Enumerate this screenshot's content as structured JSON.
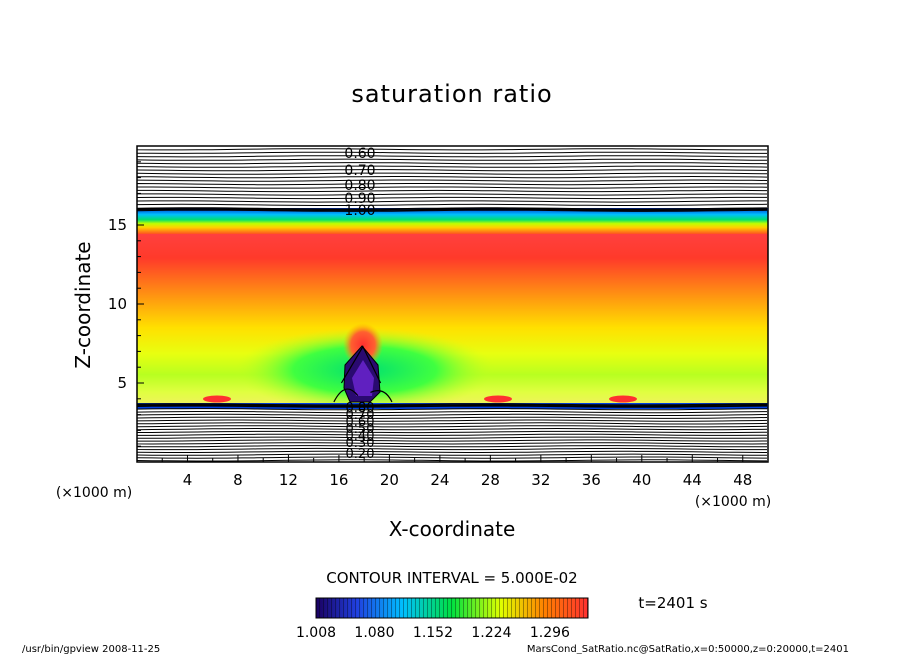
{
  "chart_data": {
    "type": "heatmap",
    "title": "saturation ratio",
    "xlabel": "X-coordinate",
    "ylabel": "Z-coordinate",
    "x_unit_label": "(×1000 m)",
    "y_unit_label": "(×1000 m)",
    "xlim": [
      0,
      50
    ],
    "ylim": [
      0,
      20
    ],
    "x_ticks": [
      "4",
      "8",
      "12",
      "16",
      "20",
      "24",
      "28",
      "32",
      "36",
      "40",
      "44",
      "48"
    ],
    "y_ticks": [
      "5",
      "10",
      "15"
    ],
    "contour_labels_upper": [
      "0.60",
      "0.70",
      "0.80",
      "0.90",
      "1.00"
    ],
    "contour_labels_lower": [
      "0.80",
      "0.70",
      "0.60",
      "0.50",
      "0.40",
      "0.30",
      "0.20"
    ],
    "contour_interval_text": "CONTOUR INTERVAL = 5.000E-02",
    "colorbar_ticks": [
      "1.008",
      "1.080",
      "1.152",
      "1.224",
      "1.296"
    ],
    "colorbar_range": [
      1.008,
      1.296
    ],
    "time_label": "t=2401 s",
    "colors": {
      "low": "#1a0060",
      "mid_low": "#00c0ff",
      "mid": "#00e040",
      "mid_high": "#e0ff00",
      "high": "#ff3030"
    }
  },
  "footer": {
    "left": "/usr/bin/gpview   2008-11-25",
    "right": "MarsCond_SatRatio.nc@SatRatio,x=0:50000,z=0:20000,t=2401"
  }
}
